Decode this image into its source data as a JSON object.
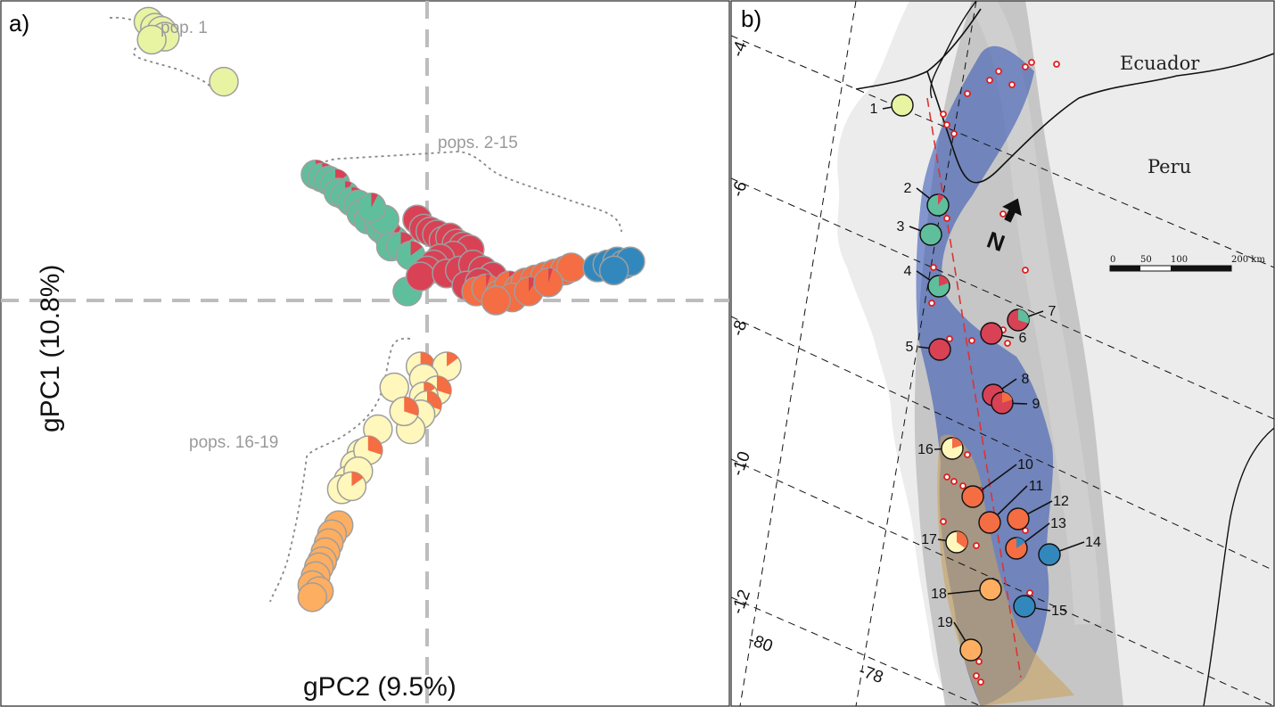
{
  "figure": {
    "panel_a_label": "a)",
    "panel_b_label": "b)"
  },
  "chart_data": [
    {
      "type": "scatter",
      "panel": "a)",
      "xlabel": "gPC2 (9.5%)",
      "ylabel": "gPC1 (10.8%)",
      "xlim": [
        -1.0,
        1.0
      ],
      "ylim": [
        -1.0,
        1.0
      ],
      "reference_lines": "dashed gray lines at x = 0 and y = 0",
      "group_labels": [
        "pop. 1",
        "pops. 2-15",
        "pops. 16-19"
      ],
      "colors": {
        "pop1": "#e8f4a2",
        "green": "#5fbf9c",
        "red": "#d94155",
        "orange": "#f46d43",
        "blue": "#3288bd",
        "light_yellow": "#fff7bb",
        "light_orange": "#fdae61"
      },
      "series": [
        {
          "color_key": "pop1",
          "points": [
            [
              -0.85,
              0.93
            ],
            [
              -0.83,
              0.91
            ],
            [
              -0.81,
              0.9
            ],
            [
              -0.8,
              0.88
            ],
            [
              -0.84,
              0.87
            ],
            [
              -0.62,
              0.73
            ]
          ],
          "mix": null
        },
        {
          "color_key": "green",
          "points": [
            [
              -0.34,
              0.42
            ],
            [
              -0.32,
              0.41
            ],
            [
              -0.3,
              0.4
            ],
            [
              -0.28,
              0.39
            ],
            [
              -0.27,
              0.36
            ],
            [
              -0.25,
              0.35
            ],
            [
              -0.23,
              0.33
            ],
            [
              -0.21,
              0.32
            ],
            [
              -0.2,
              0.29
            ],
            [
              -0.18,
              0.27
            ],
            [
              -0.15,
              0.26
            ],
            [
              -0.14,
              0.24
            ],
            [
              -0.12,
              0.22
            ],
            [
              -0.1,
              0.2
            ],
            [
              -0.11,
              0.18
            ],
            [
              -0.08,
              0.18
            ],
            [
              -0.13,
              0.27
            ],
            [
              -0.17,
              0.31
            ],
            [
              -0.05,
              0.15
            ],
            [
              -0.06,
              0.03
            ]
          ],
          "mix": {
            "color_key": "red",
            "fraction": 0.15
          }
        },
        {
          "color_key": "red",
          "points": [
            [
              -0.03,
              0.27
            ],
            [
              -0.01,
              0.24
            ],
            [
              0.01,
              0.23
            ],
            [
              0.03,
              0.22
            ],
            [
              0.05,
              0.2
            ],
            [
              0.07,
              0.21
            ],
            [
              0.09,
              0.19
            ],
            [
              0.11,
              0.18
            ],
            [
              0.13,
              0.17
            ],
            [
              0.08,
              0.15
            ],
            [
              0.04,
              0.14
            ],
            [
              0.02,
              0.12
            ],
            [
              0.0,
              0.1
            ],
            [
              -0.02,
              0.08
            ],
            [
              0.06,
              0.09
            ],
            [
              0.1,
              0.1
            ],
            [
              0.14,
              0.12
            ],
            [
              0.17,
              0.1
            ],
            [
              0.2,
              0.08
            ],
            [
              0.12,
              0.05
            ],
            [
              0.16,
              0.06
            ]
          ],
          "mix": null
        },
        {
          "color_key": "orange",
          "points": [
            [
              0.15,
              0.03
            ],
            [
              0.18,
              0.04
            ],
            [
              0.22,
              0.02
            ],
            [
              0.25,
              0.05
            ],
            [
              0.28,
              0.04
            ],
            [
              0.3,
              0.06
            ],
            [
              0.33,
              0.07
            ],
            [
              0.36,
              0.08
            ],
            [
              0.39,
              0.09
            ],
            [
              0.42,
              0.1
            ],
            [
              0.44,
              0.11
            ],
            [
              0.26,
              0.01
            ],
            [
              0.31,
              0.03
            ],
            [
              0.37,
              0.06
            ],
            [
              0.21,
              0.0
            ]
          ],
          "mix": {
            "color_key": "red",
            "fraction": 0.1
          }
        },
        {
          "color_key": "blue",
          "points": [
            [
              0.52,
              0.11
            ],
            [
              0.55,
              0.12
            ],
            [
              0.58,
              0.13
            ],
            [
              0.6,
              0.12
            ],
            [
              0.62,
              0.13
            ],
            [
              0.57,
              0.1
            ]
          ],
          "mix": null
        },
        {
          "color_key": "light_yellow",
          "points": [
            [
              -0.02,
              -0.22
            ],
            [
              0.06,
              -0.22
            ],
            [
              -0.01,
              -0.26
            ],
            [
              0.03,
              -0.3
            ],
            [
              -0.1,
              -0.29
            ],
            [
              -0.01,
              -0.32
            ],
            [
              0.0,
              -0.35
            ],
            [
              -0.02,
              -0.38
            ],
            [
              -0.05,
              -0.43
            ],
            [
              -0.07,
              -0.37
            ],
            [
              -0.15,
              -0.43
            ],
            [
              -0.2,
              -0.51
            ],
            [
              -0.22,
              -0.55
            ],
            [
              -0.24,
              -0.6
            ],
            [
              -0.26,
              -0.63
            ],
            [
              -0.18,
              -0.5
            ],
            [
              -0.21,
              -0.57
            ],
            [
              -0.23,
              -0.62
            ]
          ],
          "mix": {
            "color_key": "orange",
            "fraction": 0.3
          }
        },
        {
          "color_key": "light_orange",
          "points": [
            [
              -0.27,
              -0.75
            ],
            [
              -0.29,
              -0.78
            ],
            [
              -0.3,
              -0.81
            ],
            [
              -0.31,
              -0.84
            ],
            [
              -0.32,
              -0.87
            ],
            [
              -0.33,
              -0.89
            ],
            [
              -0.34,
              -0.92
            ],
            [
              -0.35,
              -0.95
            ],
            [
              -0.33,
              -0.97
            ],
            [
              -0.35,
              -0.99
            ]
          ],
          "mix": null
        }
      ]
    },
    {
      "type": "map",
      "panel": "b)",
      "countries": [
        "Ecuador",
        "Peru"
      ],
      "latitude_labels": [
        "-4",
        "-6",
        "-8",
        "-10",
        "-12"
      ],
      "longitude_labels": [
        "-80",
        "-78"
      ],
      "north_label": "N",
      "scale_bar": {
        "ticks": [
          "0",
          "50",
          "100",
          "200 km"
        ]
      },
      "populations": [
        {
          "id": "1",
          "color_key": "pop1",
          "mix": null
        },
        {
          "id": "2",
          "color_key": "green",
          "mix": {
            "color_key": "red",
            "fraction": 0.1
          }
        },
        {
          "id": "3",
          "color_key": "green",
          "mix": null
        },
        {
          "id": "4",
          "color_key": "green",
          "mix": {
            "color_key": "red",
            "fraction": 0.2
          }
        },
        {
          "id": "5",
          "color_key": "red",
          "mix": null
        },
        {
          "id": "6",
          "color_key": "red",
          "mix": null
        },
        {
          "id": "7",
          "color_key": "red",
          "mix": {
            "color_key": "green",
            "fraction": 0.3
          }
        },
        {
          "id": "8",
          "color_key": "red",
          "mix": null
        },
        {
          "id": "9",
          "color_key": "red",
          "mix": {
            "color_key": "orange",
            "fraction": 0.2
          }
        },
        {
          "id": "10",
          "color_key": "orange",
          "mix": null
        },
        {
          "id": "11",
          "color_key": "orange",
          "mix": null
        },
        {
          "id": "12",
          "color_key": "orange",
          "mix": null
        },
        {
          "id": "13",
          "color_key": "orange",
          "mix": {
            "color_key": "blue",
            "fraction": 0.15
          }
        },
        {
          "id": "14",
          "color_key": "blue",
          "mix": null
        },
        {
          "id": "15",
          "color_key": "blue",
          "mix": null
        },
        {
          "id": "16",
          "color_key": "light_yellow",
          "mix": {
            "color_key": "orange",
            "fraction": 0.2
          }
        },
        {
          "id": "17",
          "color_key": "light_yellow",
          "mix": {
            "color_key": "orange",
            "fraction": 0.35
          }
        },
        {
          "id": "18",
          "color_key": "light_orange",
          "mix": null
        },
        {
          "id": "19",
          "color_key": "light_orange",
          "mix": null
        }
      ]
    }
  ]
}
